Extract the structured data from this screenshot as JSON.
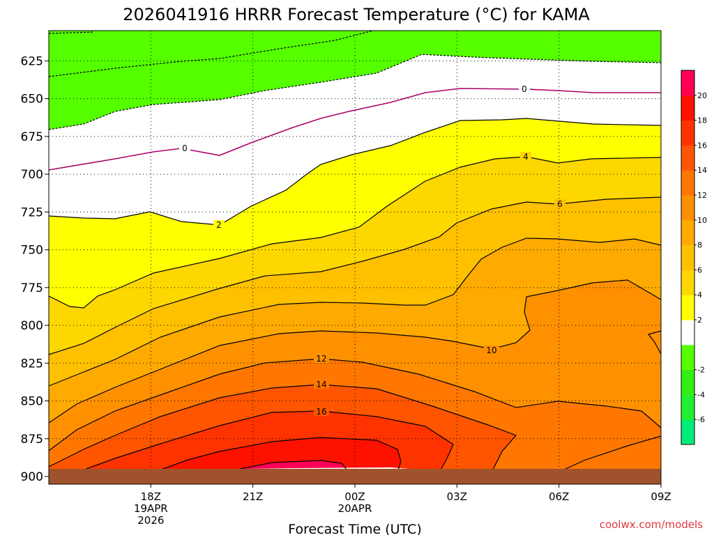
{
  "chart_data": {
    "type": "heatmap",
    "title": "2026041916 HRRR Forecast Temperature (°C) for KAMA",
    "xlabel": "Forecast Time (UTC)",
    "ylabel": "",
    "y_axis": {
      "reversed": true,
      "ticks": [
        "625",
        "650",
        "675",
        "700",
        "725",
        "750",
        "775",
        "800",
        "825",
        "850",
        "875",
        "900"
      ],
      "values": [
        625,
        650,
        675,
        700,
        725,
        750,
        775,
        800,
        825,
        850,
        875,
        900
      ],
      "range": [
        605,
        900
      ]
    },
    "x_axis": {
      "hours_range": [
        -3,
        15
      ],
      "ticks": [
        {
          "hour": 0,
          "lines": [
            "18Z",
            "19APR",
            "2026"
          ]
        },
        {
          "hour": 3,
          "lines": [
            "21Z"
          ]
        },
        {
          "hour": 6,
          "lines": [
            "00Z",
            "20APR"
          ]
        },
        {
          "hour": 9,
          "lines": [
            "03Z"
          ]
        },
        {
          "hour": 12,
          "lines": [
            "06Z"
          ]
        },
        {
          "hour": 15,
          "lines": [
            "09Z"
          ]
        }
      ]
    },
    "colorbar": {
      "levels": [
        -8,
        -6,
        -4,
        -2,
        0,
        2,
        4,
        6,
        8,
        10,
        12,
        14,
        16,
        18,
        20,
        22
      ],
      "tick_labels": [
        "20",
        "18",
        "16",
        "14",
        "12",
        "10",
        "8",
        "6",
        "4",
        "2",
        "-2",
        "-4",
        "-6"
      ],
      "colors": [
        "#00ee77",
        "#22ee33",
        "#33ee11",
        "#55ff00",
        "#ffffff",
        "#ffff00",
        "#ffd700",
        "#ffc000",
        "#ffaa00",
        "#ff9000",
        "#ff7700",
        "#ff5500",
        "#ff3300",
        "#ff1100",
        "#ff0055"
      ]
    },
    "contour_labels": [
      "0",
      "0",
      "2",
      "4",
      "6",
      "10",
      "12",
      "14",
      "16"
    ],
    "grid": true,
    "credit": "coolwx.com/models"
  }
}
